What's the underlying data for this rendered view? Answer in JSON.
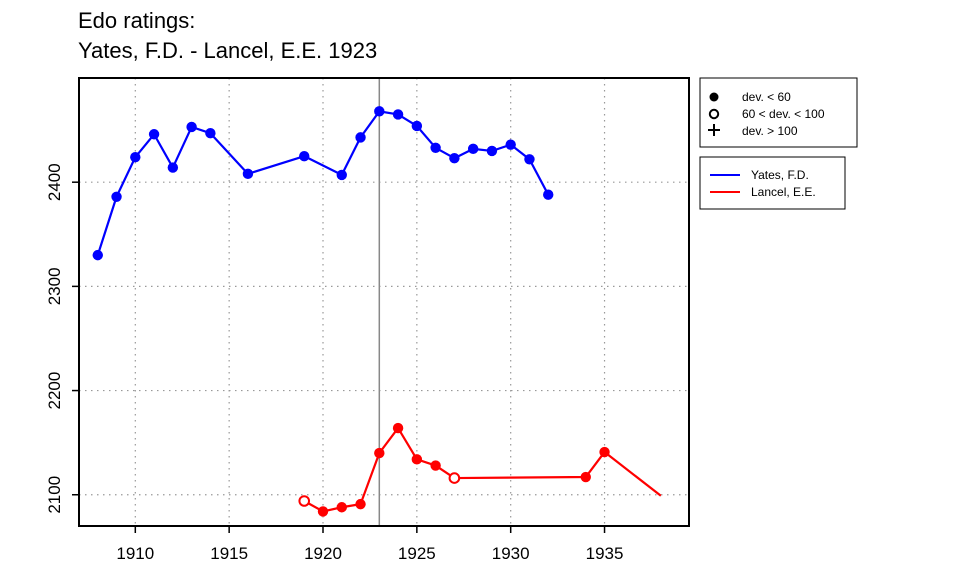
{
  "chart_data": {
    "type": "line",
    "title": "Edo ratings:",
    "subtitle": "Yates, F.D. - Lancel, E.E. 1923",
    "xlim": [
      1907,
      1939.5
    ],
    "ylim": [
      2070,
      2500
    ],
    "x_ticks": [
      1910,
      1915,
      1920,
      1925,
      1930,
      1935
    ],
    "y_ticks": [
      2100,
      2200,
      2300,
      2400
    ],
    "grid": true,
    "vertical_marker_x": 1923,
    "legend_placement": "right, outside plot",
    "marker_legend": [
      {
        "symbol": "filled-circle",
        "label": "dev. < 60"
      },
      {
        "symbol": "open-circle",
        "label": "60 < dev. < 100"
      },
      {
        "symbol": "plus",
        "label": "dev. > 100"
      }
    ],
    "series": [
      {
        "name": "Yates, F.D.",
        "color": "#0000ff",
        "points": [
          {
            "x": 1908,
            "y": 2330,
            "marker": "filled"
          },
          {
            "x": 1909,
            "y": 2386,
            "marker": "filled"
          },
          {
            "x": 1910,
            "y": 2424,
            "marker": "filled"
          },
          {
            "x": 1911,
            "y": 2446,
            "marker": "filled"
          },
          {
            "x": 1912,
            "y": 2414,
            "marker": "filled"
          },
          {
            "x": 1913,
            "y": 2453,
            "marker": "filled"
          },
          {
            "x": 1914,
            "y": 2447,
            "marker": "filled"
          },
          {
            "x": 1916,
            "y": 2408,
            "marker": "filled"
          },
          {
            "x": 1919,
            "y": 2425,
            "marker": "filled"
          },
          {
            "x": 1921,
            "y": 2407,
            "marker": "filled"
          },
          {
            "x": 1922,
            "y": 2443,
            "marker": "filled"
          },
          {
            "x": 1923,
            "y": 2468,
            "marker": "filled"
          },
          {
            "x": 1924,
            "y": 2465,
            "marker": "filled"
          },
          {
            "x": 1925,
            "y": 2454,
            "marker": "filled"
          },
          {
            "x": 1926,
            "y": 2433,
            "marker": "filled"
          },
          {
            "x": 1927,
            "y": 2423,
            "marker": "filled"
          },
          {
            "x": 1928,
            "y": 2432,
            "marker": "filled"
          },
          {
            "x": 1929,
            "y": 2430,
            "marker": "filled"
          },
          {
            "x": 1930,
            "y": 2436,
            "marker": "filled"
          },
          {
            "x": 1931,
            "y": 2422,
            "marker": "filled"
          },
          {
            "x": 1932,
            "y": 2388,
            "marker": "filled"
          }
        ]
      },
      {
        "name": "Lancel, E.E.",
        "color": "#ff0000",
        "points": [
          {
            "x": 1919,
            "y": 2094,
            "marker": "open"
          },
          {
            "x": 1920,
            "y": 2084,
            "marker": "filled"
          },
          {
            "x": 1921,
            "y": 2088,
            "marker": "filled"
          },
          {
            "x": 1922,
            "y": 2091,
            "marker": "filled"
          },
          {
            "x": 1923,
            "y": 2140,
            "marker": "filled"
          },
          {
            "x": 1924,
            "y": 2164,
            "marker": "filled"
          },
          {
            "x": 1925,
            "y": 2134,
            "marker": "filled"
          },
          {
            "x": 1926,
            "y": 2128,
            "marker": "filled"
          },
          {
            "x": 1927,
            "y": 2116,
            "marker": "open"
          },
          {
            "x": 1934,
            "y": 2117,
            "marker": "filled"
          },
          {
            "x": 1935,
            "y": 2141,
            "marker": "filled"
          },
          {
            "x": 1938,
            "y": 2099,
            "marker": "none"
          }
        ]
      }
    ]
  }
}
